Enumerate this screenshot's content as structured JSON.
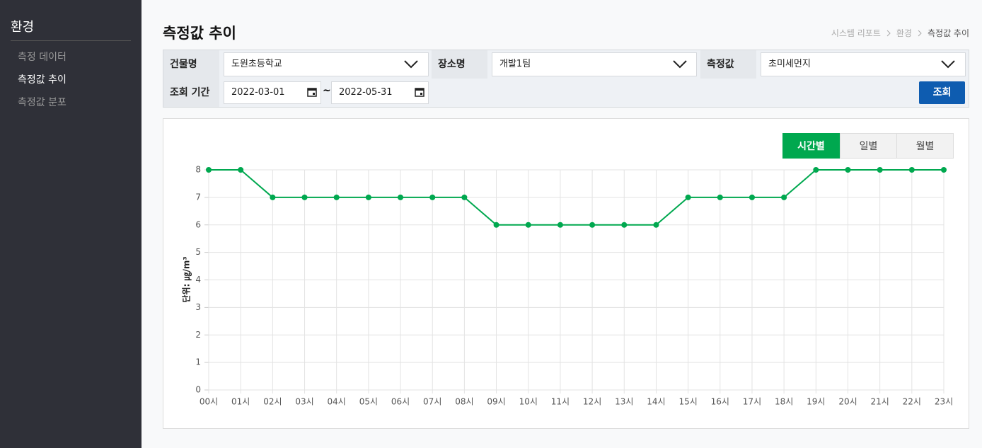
{
  "sidebar": {
    "title": "환경",
    "items": [
      "측정 데이터",
      "측정값 추이",
      "측정값 분포"
    ]
  },
  "header": {
    "title": "측정값 추이",
    "breadcrumb": [
      "시스템 리포트",
      "환경",
      "측정값 추이"
    ]
  },
  "filters": {
    "building_label": "건물명",
    "building": "도원초등학교",
    "place_label": "장소명",
    "place": "개발1팀",
    "measure_label": "측정값",
    "measure": "초미세먼지",
    "period_label": "조회 기간",
    "start": "2022-03-01",
    "separator": "~",
    "end": "2022-05-31",
    "search": "조회"
  },
  "tabs": [
    "시간별",
    "일별",
    "월별"
  ],
  "chart_data": {
    "type": "line",
    "ylabel": "단위: ㎍/m³",
    "categories": [
      "00시",
      "01시",
      "02시",
      "03시",
      "04시",
      "05시",
      "06시",
      "07시",
      "08시",
      "09시",
      "10시",
      "11시",
      "12시",
      "13시",
      "14시",
      "15시",
      "16시",
      "17시",
      "18시",
      "19시",
      "20시",
      "21시",
      "22시",
      "23시"
    ],
    "values": [
      8,
      8,
      7,
      7,
      7,
      7,
      7,
      7,
      7,
      6,
      6,
      6,
      6,
      6,
      6,
      7,
      7,
      7,
      7,
      8,
      8,
      8,
      8,
      8
    ],
    "color": "#00a84f",
    "ylim": [
      0,
      8
    ],
    "yticks": [
      0,
      1,
      2,
      3,
      4,
      5,
      6,
      7,
      8
    ],
    "grid": true
  }
}
